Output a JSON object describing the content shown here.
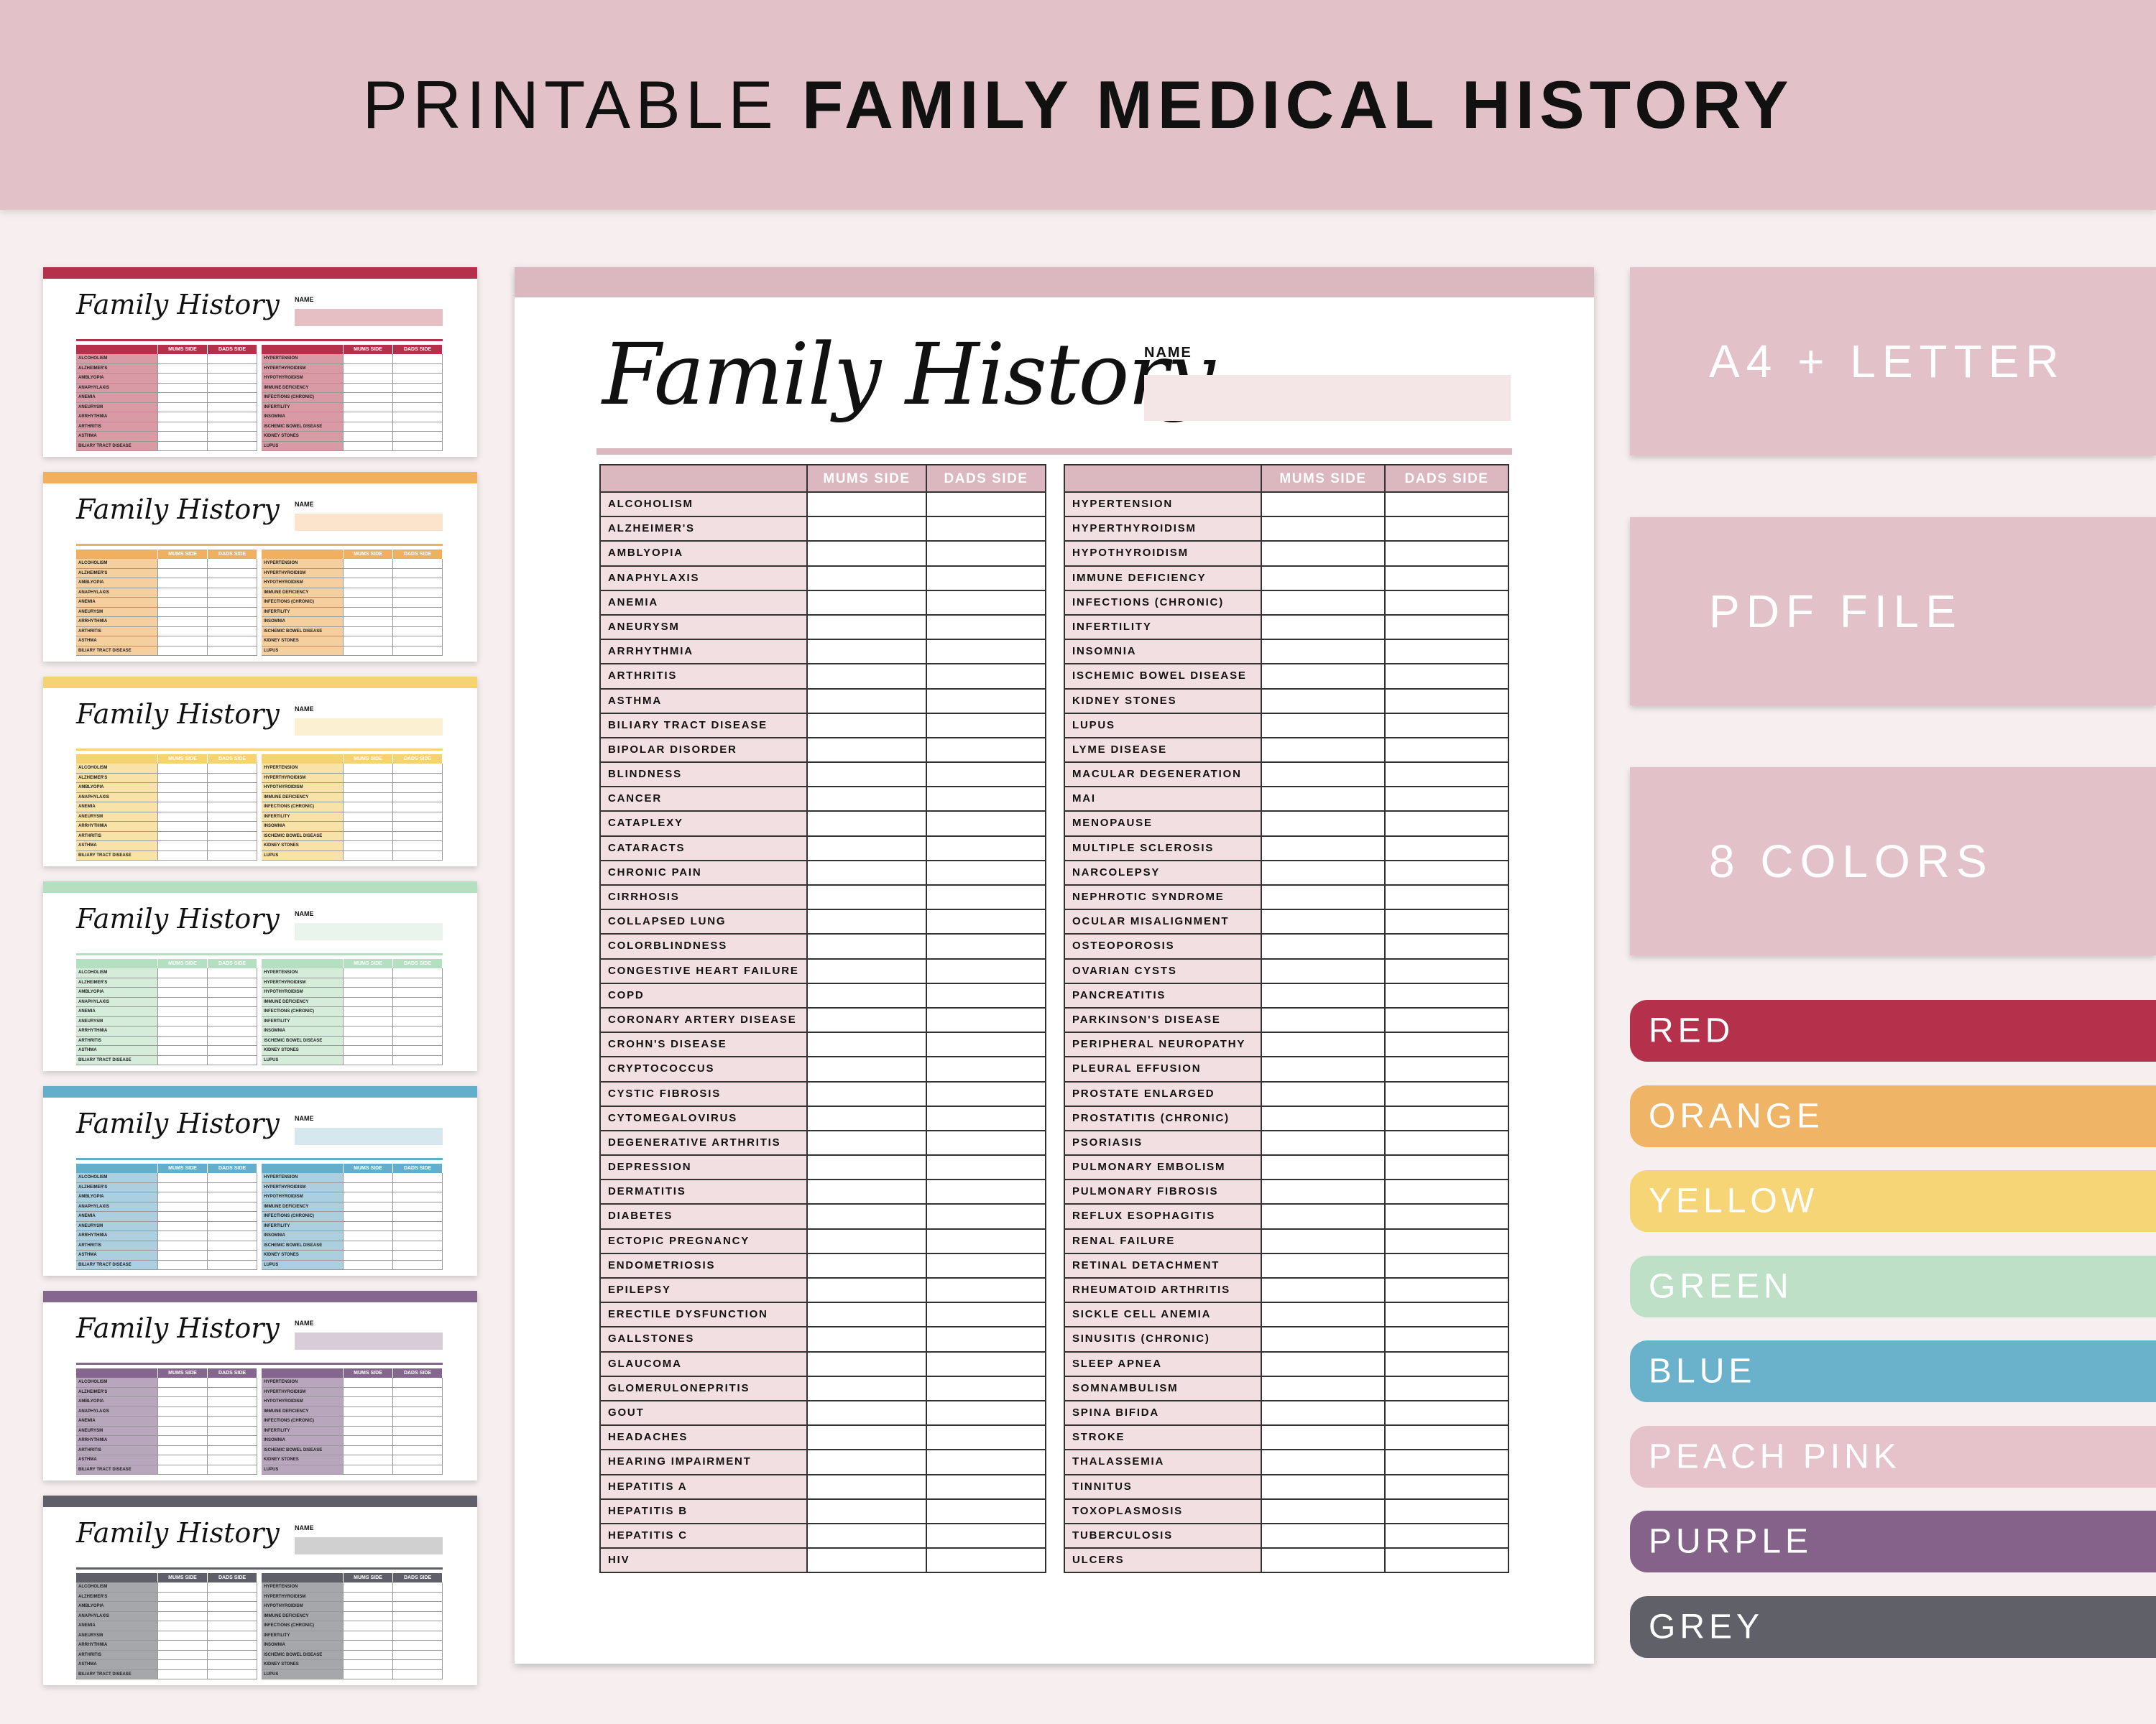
{
  "banner": {
    "title_light": "PRINTABLE",
    "title_bold": "FAMILY MEDICAL HISTORY"
  },
  "document": {
    "title": "Family History",
    "name_label": "NAME",
    "col_mums": "MUMS SIDE",
    "col_dads": "DADS SIDE",
    "left_conditions": [
      "ALCOHOLISM",
      "ALZHEIMER'S",
      "AMBLYOPIA",
      "ANAPHYLAXIS",
      "ANEMIA",
      "ANEURYSM",
      "ARRHYTHMIA",
      "ARTHRITIS",
      "ASTHMA",
      "BILIARY TRACT DISEASE",
      "BIPOLAR DISORDER",
      "BLINDNESS",
      "CANCER",
      "CATAPLEXY",
      "CATARACTS",
      "CHRONIC PAIN",
      "CIRRHOSIS",
      "COLLAPSED LUNG",
      "COLORBLINDNESS",
      "CONGESTIVE HEART FAILURE",
      "COPD",
      "CORONARY ARTERY DISEASE",
      "CROHN'S DISEASE",
      "CRYPTOCOCCUS",
      "CYSTIC FIBROSIS",
      "CYTOMEGALOVIRUS",
      "DEGENERATIVE ARTHRITIS",
      "DEPRESSION",
      "DERMATITIS",
      "DIABETES",
      "ECTOPIC PREGNANCY",
      "ENDOMETRIOSIS",
      "EPILEPSY",
      "ERECTILE DYSFUNCTION",
      "GALLSTONES",
      "GLAUCOMA",
      "GLOMERULONEPRITIS",
      "GOUT",
      "HEADACHES",
      "HEARING IMPAIRMENT",
      "HEPATITIS A",
      "HEPATITIS B",
      "HEPATITIS C",
      "HIV"
    ],
    "right_conditions": [
      "HYPERTENSION",
      "HYPERTHYROIDISM",
      "HYPOTHYROIDISM",
      "IMMUNE DEFICIENCY",
      "INFECTIONS (CHRONIC)",
      "INFERTILITY",
      "INSOMNIA",
      "ISCHEMIC BOWEL DISEASE",
      "KIDNEY STONES",
      "LUPUS",
      "LYME DISEASE",
      "MACULAR DEGENERATION",
      "MAI",
      "MENOPAUSE",
      "MULTIPLE SCLEROSIS",
      "NARCOLEPSY",
      "NEPHROTIC SYNDROME",
      "OCULAR MISALIGNMENT",
      "OSTEOPOROSIS",
      "OVARIAN CYSTS",
      "PANCREATITIS",
      "PARKINSON'S DISEASE",
      "PERIPHERAL NEUROPATHY",
      "PLEURAL EFFUSION",
      "PROSTATE ENLARGED",
      "PROSTATITIS (CHRONIC)",
      "PSORIASIS",
      "PULMONARY EMBOLISM",
      "PULMONARY FIBROSIS",
      "REFLUX ESOPHAGITIS",
      "RENAL FAILURE",
      "RETINAL DETACHMENT",
      "RHEUMATOID ARTHRITIS",
      "SICKLE CELL ANEMIA",
      "SINUSITIS (CHRONIC)",
      "SLEEP APNEA",
      "SOMNAMBULISM",
      "SPINA BIFIDA",
      "STROKE",
      "THALASSEMIA",
      "TINNITUS",
      "TOXOPLASMOSIS",
      "TUBERCULOSIS",
      "ULCERS"
    ]
  },
  "thumbnails": [
    {
      "color": "#b5304a",
      "light": "#e6bfc5",
      "cell": "#d99aa5"
    },
    {
      "color": "#f0b060",
      "light": "#fbe3cc",
      "cell": "#f6cf9f"
    },
    {
      "color": "#f5d272",
      "light": "#fcf0d3",
      "cell": "#f8e2a8"
    },
    {
      "color": "#b5dfc1",
      "light": "#e8f4ec",
      "cell": "#d5ecdb"
    },
    {
      "color": "#63aecb",
      "light": "#d7e7ee",
      "cell": "#abcfdf"
    },
    {
      "color": "#85668e",
      "light": "#d8ccd9",
      "cell": "#b8a6bc"
    },
    {
      "color": "#5e5f68",
      "light": "#d0d0d0",
      "cell": "#a6a7ab"
    }
  ],
  "thumb_left_rows": [
    "ALCOHOLISM",
    "ALZHEIMER'S",
    "AMBLYOPIA",
    "ANAPHYLAXIS",
    "ANEMIA",
    "ANEURYSM",
    "ARRHYTHMIA",
    "ARTHRITIS",
    "ASTHMA",
    "BILIARY TRACT DISEASE"
  ],
  "thumb_right_rows": [
    "HYPERTENSION",
    "HYPERTHYROIDISM",
    "HYPOTHYROIDISM",
    "IMMUNE DEFICIENCY",
    "INFECTIONS (CHRONIC)",
    "INFERTILITY",
    "INSOMNIA",
    "ISCHEMIC BOWEL DISEASE",
    "KIDNEY STONES",
    "LUPUS"
  ],
  "info": {
    "formats": "A4 + LETTER",
    "file": "PDF FILE",
    "colors_count": "8 COLORS"
  },
  "colors": [
    {
      "label": "RED",
      "hex": "#b5304a"
    },
    {
      "label": "ORANGE",
      "hex": "#efb466"
    },
    {
      "label": "YELLOW",
      "hex": "#f5d576"
    },
    {
      "label": "GREEN",
      "hex": "#bde0c6"
    },
    {
      "label": "BLUE",
      "hex": "#6ab1cc"
    },
    {
      "label": "PEACH PINK",
      "hex": "#e6c3ca"
    },
    {
      "label": "PURPLE",
      "hex": "#85628a"
    },
    {
      "label": "GREY",
      "hex": "#5f6068"
    }
  ]
}
